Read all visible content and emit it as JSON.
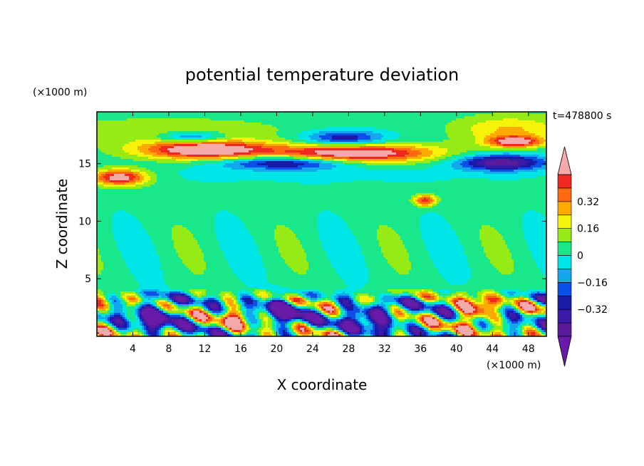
{
  "chart_data": {
    "type": "heatmap",
    "title": "potential temperature deviation",
    "xlabel": "X coordinate",
    "ylabel": "Z coordinate",
    "x_unit": "(×1000 m)",
    "y_unit": "(×1000 m)",
    "time_label": "t=478800 s",
    "xlim": [
      0,
      50
    ],
    "ylim": [
      0,
      19.5
    ],
    "x_ticks": [
      4,
      8,
      12,
      16,
      20,
      24,
      28,
      32,
      36,
      40,
      44,
      48
    ],
    "y_ticks": [
      5,
      10,
      15
    ],
    "colorbar": {
      "levels": [
        -0.48,
        -0.4,
        -0.32,
        -0.24,
        -0.16,
        -0.08,
        0,
        0.08,
        0.16,
        0.24,
        0.32,
        0.4,
        0.48
      ],
      "tick_labels": [
        "0.32",
        "0.16",
        "0",
        "−0.16",
        "−0.32"
      ],
      "tick_values": [
        0.32,
        0.16,
        0,
        -0.16,
        -0.32
      ],
      "bands": [
        {
          "from": -0.48,
          "to": -0.4,
          "color": "#5a1a9a"
        },
        {
          "from": -0.4,
          "to": -0.32,
          "color": "#3a1aa8"
        },
        {
          "from": -0.32,
          "to": -0.24,
          "color": "#1a1aa8"
        },
        {
          "from": -0.24,
          "to": -0.16,
          "color": "#0a50e8"
        },
        {
          "from": -0.16,
          "to": -0.08,
          "color": "#12a8ee"
        },
        {
          "from": -0.08,
          "to": 0,
          "color": "#00e5e5"
        },
        {
          "from": 0,
          "to": 0.08,
          "color": "#19e88a"
        },
        {
          "from": 0.08,
          "to": 0.16,
          "color": "#96eb14"
        },
        {
          "from": 0.16,
          "to": 0.24,
          "color": "#f6f20a"
        },
        {
          "from": 0.24,
          "to": 0.32,
          "color": "#ffaa00"
        },
        {
          "from": 0.32,
          "to": 0.4,
          "color": "#ff6a10"
        },
        {
          "from": 0.4,
          "to": 0.48,
          "color": "#f02820"
        }
      ],
      "over_color": "#f5a9a9",
      "under_color": "#6a1aa8"
    },
    "features": [
      {
        "x": 12,
        "z": 16.2,
        "value": 0.5
      },
      {
        "x": 29,
        "z": 16.0,
        "value": 0.5
      },
      {
        "x": 2.5,
        "z": 13.8,
        "value": 0.5
      },
      {
        "x": 46.5,
        "z": 16.9,
        "value": 0.5
      },
      {
        "x": 27.5,
        "z": 17.1,
        "value": -0.32
      },
      {
        "x": 10.5,
        "z": 17.2,
        "value": -0.32
      },
      {
        "x": 21.0,
        "z": 15.1,
        "value": -0.4
      },
      {
        "x": 45.0,
        "z": 15.0,
        "value": -0.45
      },
      {
        "x": 36.5,
        "z": 11.8,
        "value": 0.4
      },
      {
        "x": 6.5,
        "z": 1.8,
        "value": -0.35
      },
      {
        "x": 21.0,
        "z": 2.2,
        "value": -0.35
      },
      {
        "x": 30.5,
        "z": 1.8,
        "value": -0.35
      },
      {
        "x": 42.0,
        "z": 2.2,
        "value": 0.5
      },
      {
        "x": 15.5,
        "z": 1.5,
        "value": 0.3
      }
    ]
  }
}
